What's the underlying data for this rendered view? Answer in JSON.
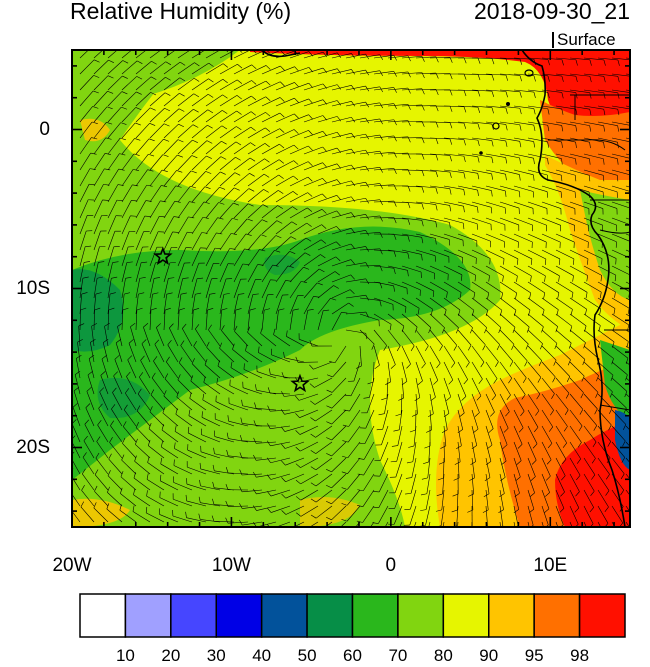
{
  "title": {
    "left": "Relative Humidity (%)",
    "right": "2018-09-30_21"
  },
  "level_label": "Surface",
  "lat_labels": [
    {
      "lat": 0,
      "label": "0"
    },
    {
      "lat": -10,
      "label": "10S"
    },
    {
      "lat": -20,
      "label": "20S"
    }
  ],
  "lon_labels": [
    {
      "lon": -20,
      "label": "20W"
    },
    {
      "lon": -10,
      "label": "10W"
    },
    {
      "lon": 0,
      "label": "0"
    },
    {
      "lon": 10,
      "label": "10E"
    }
  ],
  "map_extent": {
    "lon": [
      -20,
      15
    ],
    "lat": [
      -25,
      5
    ]
  },
  "stars": [
    {
      "lon": -14.3,
      "lat": -8.0
    },
    {
      "lon": -5.7,
      "lat": -16.0
    }
  ],
  "colorbar": {
    "colors": [
      "#ffffff",
      "#a0a0ff",
      "#4646ff",
      "#0000e6",
      "#02529b",
      "#068e47",
      "#2ab71c",
      "#81d510",
      "#e6f500",
      "#ffc400",
      "#ff7000",
      "#ff1000"
    ],
    "labels": [
      "10",
      "20",
      "30",
      "40",
      "50",
      "60",
      "70",
      "80",
      "90",
      "95",
      "98"
    ]
  },
  "colors": {
    "rh_60": "#068e47",
    "rh_70": "#2ab71c",
    "rh_80": "#81d510",
    "rh_90": "#e6f500",
    "rh_95": "#ffc400",
    "rh_98": "#ff7000",
    "rh_100": "#ff1000"
  }
}
